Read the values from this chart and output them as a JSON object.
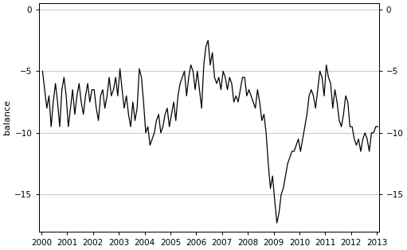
{
  "ylabel_left": "balance",
  "ylim": [
    -18,
    0.5
  ],
  "yticks": [
    0,
    -5,
    -10,
    -15
  ],
  "xlim": [
    1999.917,
    2013.083
  ],
  "xticks": [
    2000,
    2001,
    2002,
    2003,
    2004,
    2005,
    2006,
    2007,
    2008,
    2009,
    2010,
    2011,
    2012,
    2013
  ],
  "line_color": "#000000",
  "line_width": 0.9,
  "bg_color": "#ffffff",
  "grid_color": "#b0b0b0",
  "dates": [
    2000.042,
    2000.125,
    2000.208,
    2000.292,
    2000.375,
    2000.458,
    2000.542,
    2000.625,
    2000.708,
    2000.792,
    2000.875,
    2000.958,
    2001.042,
    2001.125,
    2001.208,
    2001.292,
    2001.375,
    2001.458,
    2001.542,
    2001.625,
    2001.708,
    2001.792,
    2001.875,
    2001.958,
    2002.042,
    2002.125,
    2002.208,
    2002.292,
    2002.375,
    2002.458,
    2002.542,
    2002.625,
    2002.708,
    2002.792,
    2002.875,
    2002.958,
    2003.042,
    2003.125,
    2003.208,
    2003.292,
    2003.375,
    2003.458,
    2003.542,
    2003.625,
    2003.708,
    2003.792,
    2003.875,
    2003.958,
    2004.042,
    2004.125,
    2004.208,
    2004.292,
    2004.375,
    2004.458,
    2004.542,
    2004.625,
    2004.708,
    2004.792,
    2004.875,
    2004.958,
    2005.042,
    2005.125,
    2005.208,
    2005.292,
    2005.375,
    2005.458,
    2005.542,
    2005.625,
    2005.708,
    2005.792,
    2005.875,
    2005.958,
    2006.042,
    2006.125,
    2006.208,
    2006.292,
    2006.375,
    2006.458,
    2006.542,
    2006.625,
    2006.708,
    2006.792,
    2006.875,
    2006.958,
    2007.042,
    2007.125,
    2007.208,
    2007.292,
    2007.375,
    2007.458,
    2007.542,
    2007.625,
    2007.708,
    2007.792,
    2007.875,
    2007.958,
    2008.042,
    2008.125,
    2008.208,
    2008.292,
    2008.375,
    2008.458,
    2008.542,
    2008.625,
    2008.708,
    2008.792,
    2008.875,
    2008.958,
    2009.042,
    2009.125,
    2009.208,
    2009.292,
    2009.375,
    2009.458,
    2009.542,
    2009.625,
    2009.708,
    2009.792,
    2009.875,
    2009.958,
    2010.042,
    2010.125,
    2010.208,
    2010.292,
    2010.375,
    2010.458,
    2010.542,
    2010.625,
    2010.708,
    2010.792,
    2010.875,
    2010.958,
    2011.042,
    2011.125,
    2011.208,
    2011.292,
    2011.375,
    2011.458,
    2011.542,
    2011.625,
    2011.708,
    2011.792,
    2011.875,
    2011.958,
    2012.042,
    2012.125,
    2012.208,
    2012.292,
    2012.375,
    2012.458,
    2012.542,
    2012.625,
    2012.708,
    2012.792,
    2012.875,
    2012.958,
    2013.042
  ],
  "values": [
    -5.0,
    -6.5,
    -8.0,
    -7.0,
    -9.5,
    -7.5,
    -6.0,
    -7.5,
    -9.5,
    -6.5,
    -5.5,
    -7.0,
    -9.5,
    -8.0,
    -6.5,
    -8.5,
    -7.0,
    -6.0,
    -7.5,
    -8.5,
    -7.0,
    -6.0,
    -7.5,
    -6.5,
    -6.5,
    -8.0,
    -9.0,
    -7.0,
    -6.5,
    -8.0,
    -7.0,
    -5.5,
    -7.0,
    -6.5,
    -5.5,
    -7.0,
    -4.8,
    -6.5,
    -8.0,
    -7.0,
    -8.5,
    -9.5,
    -7.5,
    -9.0,
    -8.0,
    -4.8,
    -5.5,
    -7.5,
    -10.0,
    -9.5,
    -11.0,
    -10.5,
    -10.0,
    -9.0,
    -8.5,
    -10.0,
    -9.5,
    -8.5,
    -8.0,
    -9.5,
    -8.5,
    -7.5,
    -9.0,
    -7.0,
    -6.0,
    -5.5,
    -5.0,
    -7.0,
    -5.5,
    -4.5,
    -5.0,
    -6.5,
    -5.0,
    -6.5,
    -8.0,
    -4.5,
    -3.0,
    -2.5,
    -4.5,
    -3.5,
    -5.5,
    -6.0,
    -5.5,
    -6.5,
    -5.0,
    -5.5,
    -6.5,
    -5.5,
    -6.0,
    -7.5,
    -7.0,
    -7.5,
    -6.5,
    -5.5,
    -5.5,
    -7.0,
    -6.5,
    -7.0,
    -7.5,
    -8.0,
    -6.5,
    -7.5,
    -9.0,
    -8.5,
    -10.0,
    -12.5,
    -14.5,
    -13.5,
    -15.5,
    -17.3,
    -16.5,
    -15.0,
    -14.5,
    -13.5,
    -12.5,
    -12.0,
    -11.5,
    -11.5,
    -11.0,
    -10.5,
    -11.5,
    -10.5,
    -9.5,
    -8.5,
    -7.0,
    -6.5,
    -7.0,
    -8.0,
    -6.5,
    -5.0,
    -5.5,
    -7.0,
    -4.5,
    -5.5,
    -6.0,
    -8.0,
    -6.5,
    -7.5,
    -9.0,
    -9.5,
    -8.5,
    -7.0,
    -7.5,
    -9.5,
    -9.5,
    -10.5,
    -11.0,
    -10.5,
    -11.5,
    -10.5,
    -10.0,
    -10.5,
    -11.5,
    -10.0,
    -10.0,
    -9.5,
    -9.5
  ]
}
